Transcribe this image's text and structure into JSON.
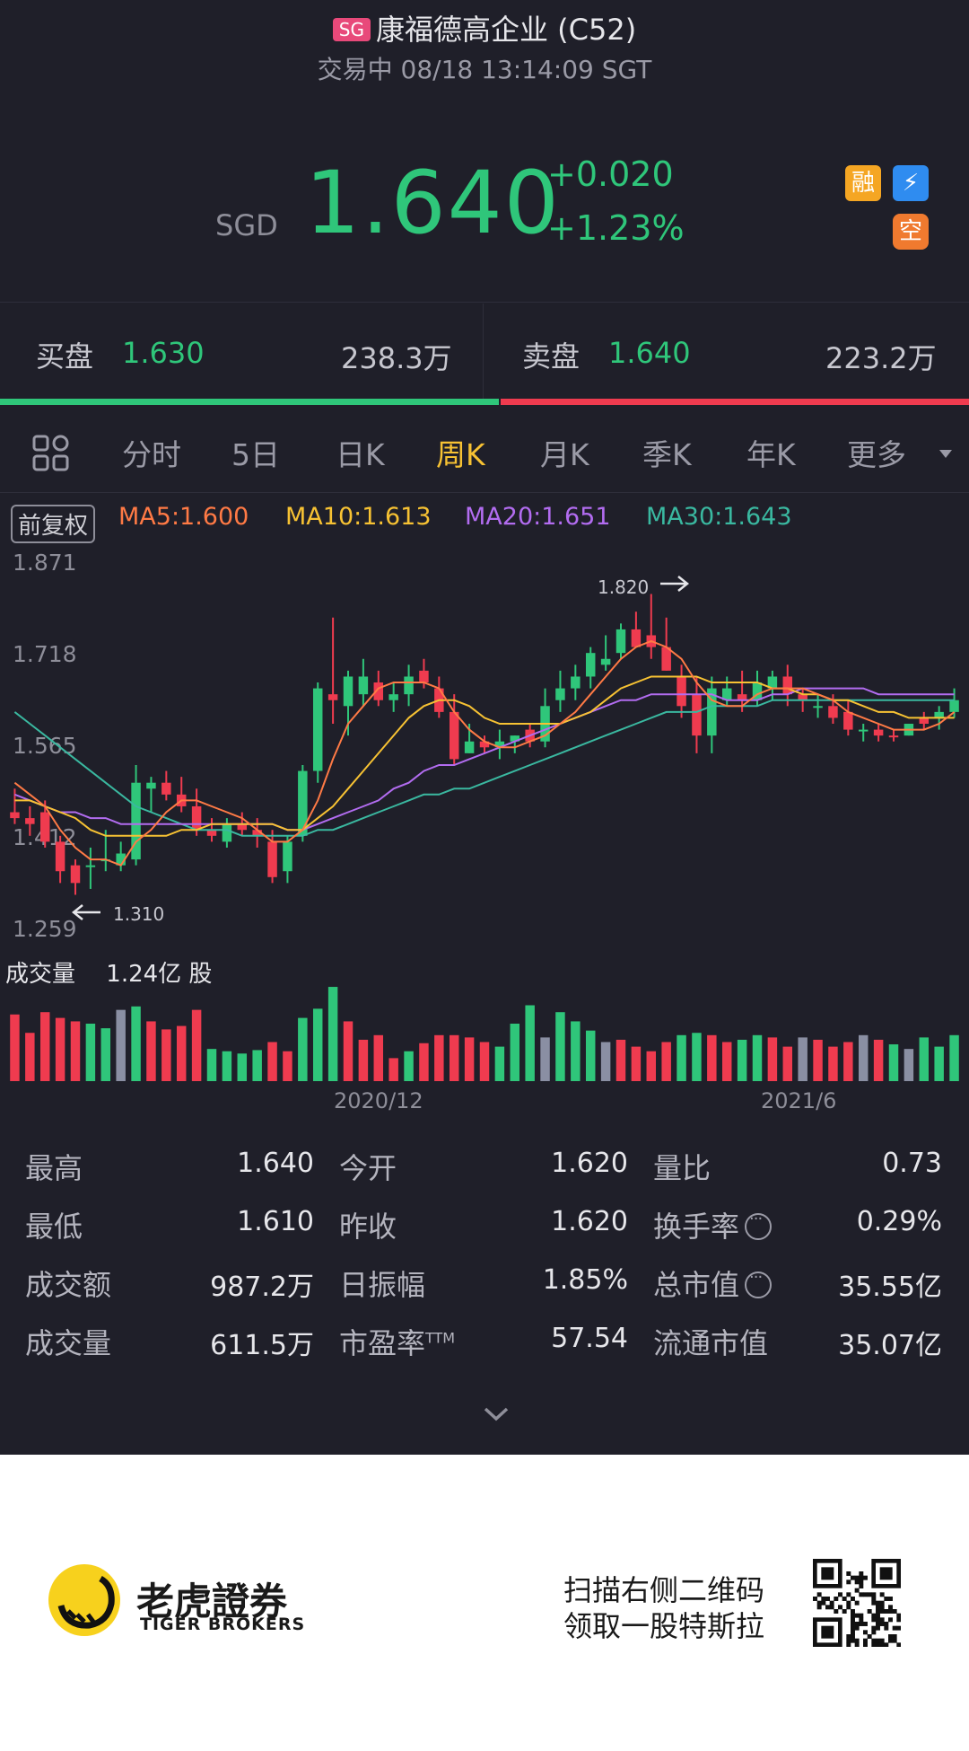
{
  "header": {
    "exchange_badge": "SG",
    "title": "康福德高企业 (C52)",
    "status": "交易中 08/18 13:14:09 SGT"
  },
  "quote": {
    "currency": "SGD",
    "price": "1.640",
    "change": "+0.020",
    "change_pct": "+1.23%",
    "tags": [
      "融",
      "⚡",
      "空"
    ]
  },
  "bid_ask": {
    "bid_label": "买盘",
    "bid_price": "1.630",
    "bid_volume": "238.3万",
    "ask_label": "卖盘",
    "ask_price": "1.640",
    "ask_volume": "223.2万",
    "bid_fraction": 0.516
  },
  "tabs": [
    "分时",
    "5日",
    "日K",
    "周K",
    "月K",
    "季K",
    "年K",
    "更多"
  ],
  "active_tab": "周K",
  "indicators": {
    "adjust_label": "前复权",
    "ma5": "MA5:1.600",
    "ma10": "MA10:1.613",
    "ma20": "MA20:1.651",
    "ma30": "MA30:1.643"
  },
  "colors": {
    "up": "#ef3b4f",
    "down": "#2fc67a",
    "flat": "#8a8fa3",
    "ma5": "#ff7a45",
    "ma10": "#f7c233",
    "ma20": "#b26cf0",
    "ma30": "#3ab8a0",
    "active_tab": "#f7c233"
  },
  "chart_data": {
    "type": "candlestick",
    "y_ticks": [
      "1.871",
      "1.718",
      "1.565",
      "1.412",
      "1.259"
    ],
    "ylim": [
      1.259,
      1.871
    ],
    "high_marker": "1.820",
    "low_marker": "1.310",
    "x_labels": [
      "2020/12",
      "2021/6"
    ],
    "candles": [
      {
        "o": 1.45,
        "h": 1.49,
        "l": 1.43,
        "c": 1.44,
        "up": true
      },
      {
        "o": 1.44,
        "h": 1.46,
        "l": 1.41,
        "c": 1.43,
        "up": true
      },
      {
        "o": 1.45,
        "h": 1.47,
        "l": 1.39,
        "c": 1.4,
        "up": true
      },
      {
        "o": 1.4,
        "h": 1.41,
        "l": 1.33,
        "c": 1.35,
        "up": true
      },
      {
        "o": 1.36,
        "h": 1.37,
        "l": 1.31,
        "c": 1.33,
        "up": true
      },
      {
        "o": 1.36,
        "h": 1.39,
        "l": 1.32,
        "c": 1.36,
        "up": false
      },
      {
        "o": 1.37,
        "h": 1.42,
        "l": 1.35,
        "c": 1.37,
        "up": false
      },
      {
        "o": 1.36,
        "h": 1.4,
        "l": 1.35,
        "c": 1.38,
        "up": false
      },
      {
        "o": 1.37,
        "h": 1.53,
        "l": 1.36,
        "c": 1.5,
        "up": false
      },
      {
        "o": 1.49,
        "h": 1.51,
        "l": 1.45,
        "c": 1.5,
        "up": false
      },
      {
        "o": 1.5,
        "h": 1.52,
        "l": 1.47,
        "c": 1.48,
        "up": true
      },
      {
        "o": 1.48,
        "h": 1.51,
        "l": 1.45,
        "c": 1.46,
        "up": true
      },
      {
        "o": 1.46,
        "h": 1.49,
        "l": 1.41,
        "c": 1.42,
        "up": true
      },
      {
        "o": 1.42,
        "h": 1.44,
        "l": 1.4,
        "c": 1.41,
        "up": true
      },
      {
        "o": 1.4,
        "h": 1.44,
        "l": 1.39,
        "c": 1.43,
        "up": false
      },
      {
        "o": 1.43,
        "h": 1.45,
        "l": 1.41,
        "c": 1.42,
        "up": true
      },
      {
        "o": 1.42,
        "h": 1.44,
        "l": 1.39,
        "c": 1.41,
        "up": true
      },
      {
        "o": 1.4,
        "h": 1.42,
        "l": 1.33,
        "c": 1.34,
        "up": true
      },
      {
        "o": 1.35,
        "h": 1.41,
        "l": 1.33,
        "c": 1.4,
        "up": false
      },
      {
        "o": 1.41,
        "h": 1.53,
        "l": 1.4,
        "c": 1.52,
        "up": false
      },
      {
        "o": 1.52,
        "h": 1.67,
        "l": 1.5,
        "c": 1.66,
        "up": false
      },
      {
        "o": 1.65,
        "h": 1.78,
        "l": 1.6,
        "c": 1.64,
        "up": true
      },
      {
        "o": 1.63,
        "h": 1.69,
        "l": 1.58,
        "c": 1.68,
        "up": false
      },
      {
        "o": 1.65,
        "h": 1.71,
        "l": 1.63,
        "c": 1.68,
        "up": false
      },
      {
        "o": 1.67,
        "h": 1.69,
        "l": 1.63,
        "c": 1.64,
        "up": true
      },
      {
        "o": 1.64,
        "h": 1.67,
        "l": 1.62,
        "c": 1.65,
        "up": false
      },
      {
        "o": 1.65,
        "h": 1.7,
        "l": 1.63,
        "c": 1.68,
        "up": false
      },
      {
        "o": 1.69,
        "h": 1.71,
        "l": 1.66,
        "c": 1.67,
        "up": true
      },
      {
        "o": 1.66,
        "h": 1.68,
        "l": 1.61,
        "c": 1.62,
        "up": true
      },
      {
        "o": 1.62,
        "h": 1.65,
        "l": 1.53,
        "c": 1.54,
        "up": true
      },
      {
        "o": 1.55,
        "h": 1.6,
        "l": 1.55,
        "c": 1.57,
        "up": false
      },
      {
        "o": 1.56,
        "h": 1.58,
        "l": 1.55,
        "c": 1.57,
        "up": true
      },
      {
        "o": 1.57,
        "h": 1.59,
        "l": 1.54,
        "c": 1.56,
        "up": false
      },
      {
        "o": 1.57,
        "h": 1.58,
        "l": 1.55,
        "c": 1.58,
        "up": false
      },
      {
        "o": 1.59,
        "h": 1.6,
        "l": 1.56,
        "c": 1.57,
        "up": true
      },
      {
        "o": 1.57,
        "h": 1.66,
        "l": 1.56,
        "c": 1.63,
        "up": false
      },
      {
        "o": 1.64,
        "h": 1.69,
        "l": 1.62,
        "c": 1.66,
        "up": false
      },
      {
        "o": 1.66,
        "h": 1.7,
        "l": 1.64,
        "c": 1.68,
        "up": false
      },
      {
        "o": 1.68,
        "h": 1.73,
        "l": 1.66,
        "c": 1.72,
        "up": false
      },
      {
        "o": 1.7,
        "h": 1.75,
        "l": 1.69,
        "c": 1.71,
        "up": false
      },
      {
        "o": 1.72,
        "h": 1.77,
        "l": 1.71,
        "c": 1.76,
        "up": false
      },
      {
        "o": 1.76,
        "h": 1.79,
        "l": 1.73,
        "c": 1.73,
        "up": true
      },
      {
        "o": 1.73,
        "h": 1.82,
        "l": 1.71,
        "c": 1.75,
        "up": true
      },
      {
        "o": 1.73,
        "h": 1.78,
        "l": 1.69,
        "c": 1.69,
        "up": true
      },
      {
        "o": 1.68,
        "h": 1.7,
        "l": 1.61,
        "c": 1.63,
        "up": true
      },
      {
        "o": 1.65,
        "h": 1.68,
        "l": 1.55,
        "c": 1.58,
        "up": true
      },
      {
        "o": 1.58,
        "h": 1.68,
        "l": 1.55,
        "c": 1.66,
        "up": false
      },
      {
        "o": 1.64,
        "h": 1.68,
        "l": 1.63,
        "c": 1.66,
        "up": false
      },
      {
        "o": 1.65,
        "h": 1.69,
        "l": 1.62,
        "c": 1.64,
        "up": true
      },
      {
        "o": 1.64,
        "h": 1.69,
        "l": 1.63,
        "c": 1.67,
        "up": false
      },
      {
        "o": 1.66,
        "h": 1.69,
        "l": 1.64,
        "c": 1.68,
        "up": false
      },
      {
        "o": 1.68,
        "h": 1.7,
        "l": 1.63,
        "c": 1.65,
        "up": true
      },
      {
        "o": 1.65,
        "h": 1.66,
        "l": 1.62,
        "c": 1.64,
        "up": true
      },
      {
        "o": 1.63,
        "h": 1.65,
        "l": 1.61,
        "c": 1.63,
        "up": false
      },
      {
        "o": 1.63,
        "h": 1.65,
        "l": 1.6,
        "c": 1.61,
        "up": true
      },
      {
        "o": 1.62,
        "h": 1.64,
        "l": 1.58,
        "c": 1.59,
        "up": true
      },
      {
        "o": 1.59,
        "h": 1.6,
        "l": 1.57,
        "c": 1.59,
        "up": false
      },
      {
        "o": 1.59,
        "h": 1.6,
        "l": 1.57,
        "c": 1.58,
        "up": true
      },
      {
        "o": 1.58,
        "h": 1.59,
        "l": 1.57,
        "c": 1.58,
        "up": true
      },
      {
        "o": 1.58,
        "h": 1.6,
        "l": 1.58,
        "c": 1.6,
        "up": false
      },
      {
        "o": 1.61,
        "h": 1.62,
        "l": 1.59,
        "c": 1.6,
        "up": true
      },
      {
        "o": 1.61,
        "h": 1.63,
        "l": 1.59,
        "c": 1.62,
        "up": false
      },
      {
        "o": 1.62,
        "h": 1.66,
        "l": 1.61,
        "c": 1.64,
        "up": false
      }
    ],
    "ma5": [
      1.5,
      1.48,
      1.46,
      1.42,
      1.39,
      1.37,
      1.37,
      1.36,
      1.4,
      1.42,
      1.45,
      1.47,
      1.47,
      1.46,
      1.45,
      1.44,
      1.42,
      1.4,
      1.4,
      1.42,
      1.47,
      1.54,
      1.6,
      1.63,
      1.66,
      1.67,
      1.67,
      1.67,
      1.66,
      1.62,
      1.59,
      1.57,
      1.56,
      1.56,
      1.57,
      1.58,
      1.6,
      1.62,
      1.65,
      1.68,
      1.71,
      1.73,
      1.74,
      1.73,
      1.71,
      1.67,
      1.64,
      1.63,
      1.63,
      1.65,
      1.66,
      1.66,
      1.66,
      1.65,
      1.64,
      1.62,
      1.61,
      1.6,
      1.59,
      1.59,
      1.59,
      1.6,
      1.62
    ],
    "ma10": [
      1.47,
      1.47,
      1.46,
      1.45,
      1.44,
      1.42,
      1.41,
      1.41,
      1.41,
      1.41,
      1.41,
      1.42,
      1.42,
      1.43,
      1.43,
      1.43,
      1.43,
      1.43,
      1.42,
      1.42,
      1.44,
      1.46,
      1.49,
      1.52,
      1.55,
      1.58,
      1.61,
      1.63,
      1.64,
      1.64,
      1.63,
      1.61,
      1.6,
      1.6,
      1.6,
      1.6,
      1.6,
      1.61,
      1.62,
      1.64,
      1.66,
      1.67,
      1.68,
      1.68,
      1.68,
      1.68,
      1.67,
      1.67,
      1.67,
      1.67,
      1.66,
      1.66,
      1.65,
      1.65,
      1.64,
      1.64,
      1.63,
      1.62,
      1.62,
      1.61,
      1.61,
      1.61,
      1.61
    ],
    "ma20": [
      1.48,
      1.47,
      1.46,
      1.45,
      1.45,
      1.44,
      1.44,
      1.43,
      1.43,
      1.43,
      1.43,
      1.43,
      1.43,
      1.43,
      1.43,
      1.43,
      1.43,
      1.43,
      1.42,
      1.42,
      1.43,
      1.44,
      1.45,
      1.46,
      1.47,
      1.49,
      1.5,
      1.52,
      1.53,
      1.53,
      1.54,
      1.55,
      1.56,
      1.57,
      1.58,
      1.59,
      1.6,
      1.61,
      1.62,
      1.63,
      1.64,
      1.64,
      1.65,
      1.65,
      1.65,
      1.65,
      1.65,
      1.64,
      1.64,
      1.64,
      1.65,
      1.65,
      1.66,
      1.66,
      1.66,
      1.66,
      1.66,
      1.65,
      1.65,
      1.65,
      1.65,
      1.65,
      1.65
    ],
    "ma30": [
      1.62,
      1.6,
      1.58,
      1.56,
      1.54,
      1.52,
      1.5,
      1.48,
      1.46,
      1.45,
      1.44,
      1.43,
      1.42,
      1.42,
      1.42,
      1.41,
      1.41,
      1.41,
      1.41,
      1.41,
      1.42,
      1.42,
      1.43,
      1.44,
      1.45,
      1.46,
      1.47,
      1.48,
      1.48,
      1.49,
      1.49,
      1.5,
      1.51,
      1.52,
      1.53,
      1.54,
      1.55,
      1.56,
      1.57,
      1.58,
      1.59,
      1.6,
      1.61,
      1.62,
      1.62,
      1.62,
      1.63,
      1.63,
      1.63,
      1.63,
      1.64,
      1.64,
      1.64,
      1.64,
      1.64,
      1.64,
      1.64,
      1.64,
      1.64,
      1.64,
      1.64,
      1.64,
      1.64
    ],
    "volume_label": "成交量",
    "volume_value": "1.24亿 股",
    "volumes": [
      0.58,
      0.42,
      0.6,
      0.55,
      0.52,
      0.5,
      0.46,
      0.62,
      0.65,
      0.52,
      0.45,
      0.48,
      0.62,
      0.28,
      0.26,
      0.24,
      0.27,
      0.34,
      0.26,
      0.55,
      0.63,
      0.82,
      0.52,
      0.36,
      0.4,
      0.2,
      0.26,
      0.33,
      0.4,
      0.4,
      0.38,
      0.34,
      0.3,
      0.5,
      0.66,
      0.38,
      0.6,
      0.52,
      0.44,
      0.34,
      0.36,
      0.3,
      0.26,
      0.34,
      0.4,
      0.42,
      0.4,
      0.34,
      0.36,
      0.4,
      0.38,
      0.3,
      0.38,
      0.36,
      0.3,
      0.34,
      0.4,
      0.36,
      0.32,
      0.28,
      0.38,
      0.3,
      0.4
    ],
    "volume_colors": [
      "up",
      "up",
      "up",
      "up",
      "up",
      "down",
      "down",
      "flat",
      "down",
      "up",
      "up",
      "up",
      "up",
      "down",
      "down",
      "down",
      "down",
      "up",
      "up",
      "down",
      "down",
      "down",
      "up",
      "up",
      "up",
      "up",
      "down",
      "up",
      "up",
      "up",
      "up",
      "up",
      "down",
      "down",
      "down",
      "flat",
      "down",
      "down",
      "down",
      "flat",
      "up",
      "up",
      "up",
      "up",
      "down",
      "down",
      "up",
      "up",
      "down",
      "down",
      "up",
      "up",
      "flat",
      "up",
      "up",
      "up",
      "flat",
      "up",
      "down",
      "flat",
      "down",
      "down",
      "down"
    ]
  },
  "stats": [
    {
      "label": "最高",
      "value": "1.640"
    },
    {
      "label": "今开",
      "value": "1.620"
    },
    {
      "label": "量比",
      "value": "0.73"
    },
    {
      "label": "最低",
      "value": "1.610"
    },
    {
      "label": "昨收",
      "value": "1.620"
    },
    {
      "label": "换手率",
      "value": "0.29%"
    },
    {
      "label": "成交额",
      "value": "987.2万"
    },
    {
      "label": "日振幅",
      "value": "1.85%"
    },
    {
      "label": "总市值",
      "value": "35.55亿"
    },
    {
      "label": "成交量",
      "value": "611.5万"
    },
    {
      "label": "市盈率",
      "label_sup": "TTM",
      "value": "57.54"
    },
    {
      "label": "流通市值",
      "value": "35.07亿"
    }
  ],
  "footer": {
    "brand_cn": "老虎證券",
    "brand_en": "TIGER BROKERS",
    "promo_line1": "扫描右侧二维码",
    "promo_line2": "领取一股特斯拉"
  }
}
